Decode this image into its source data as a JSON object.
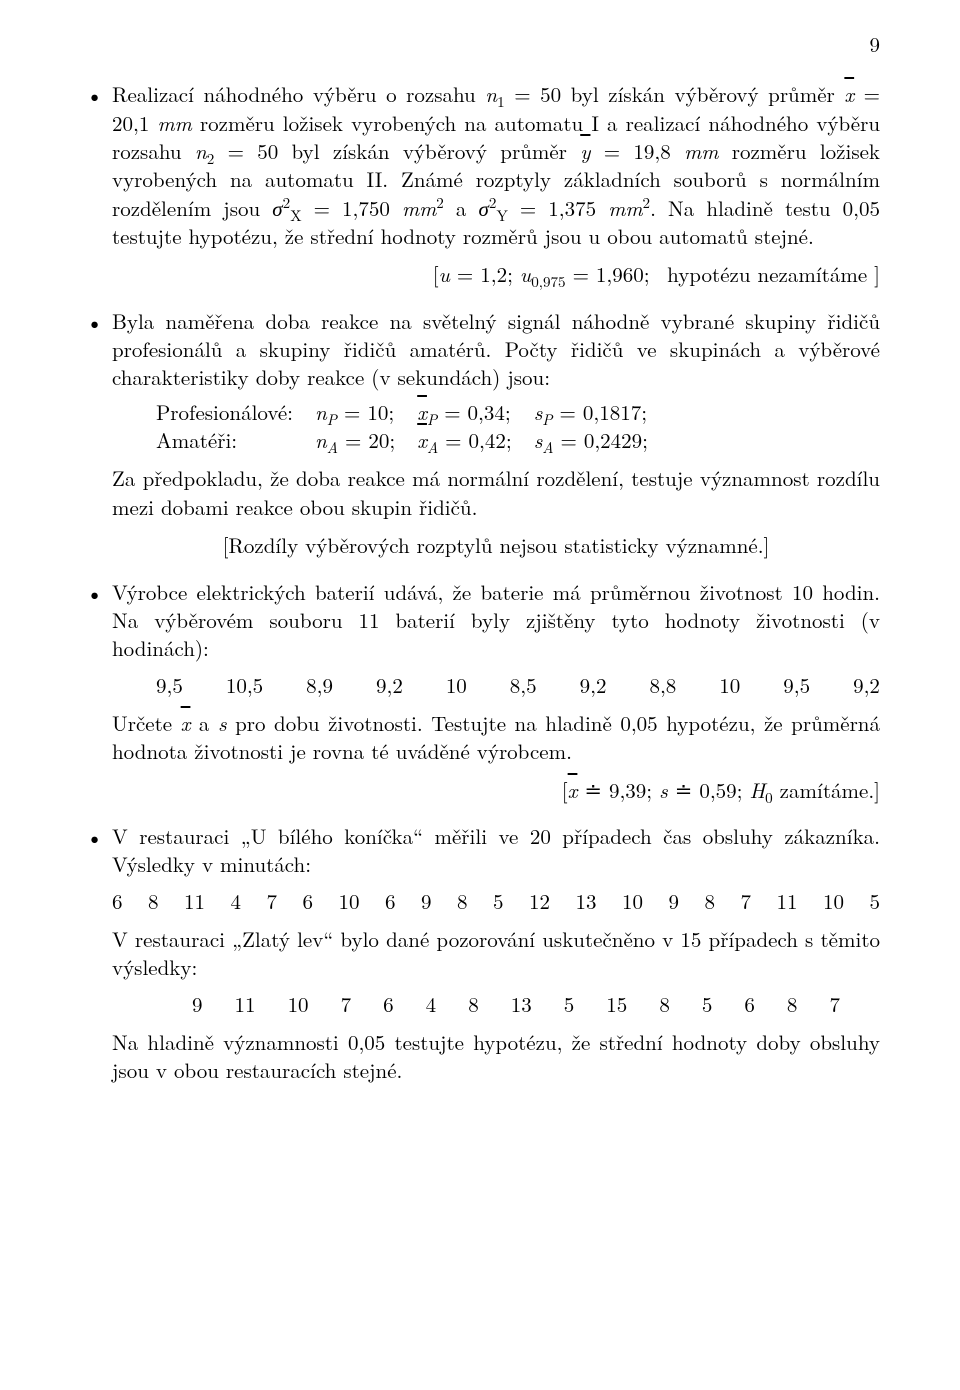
{
  "page": {
    "number": "9"
  },
  "colors": {
    "text": "#000000",
    "background": "#ffffff"
  },
  "typography": {
    "body_fontsize_pt": 16,
    "line_height": 1.35,
    "family": "Computer Modern / Times-like serif"
  },
  "item1": {
    "text_html": "Realizací náhodného výběru o rozsahu <span class=\"ital\">n</span><sub>1</sub> = 50 byl získán výběrový průměr <span class=\"ital bar\">x</span> = 20,1 <span class=\"ital\">mm</span> rozměru ložisek vyrobených na automatu I a realizací náhodného výběru rozsahu <span class=\"ital\">n</span><sub>2</sub> = 50 byl získán výběrový průměr <span class=\"ital bar\">y</span> = 19,8 <span class=\"ital\">mm</span> rozměru ložisek vyrobených na automatu II. Známé rozptyly základních souborů s normálním rozdělením jsou <span class=\"ital\">σ</span><sup>2</sup><sub>X</sub> = 1,750 <span class=\"ital\">mm</span><sup>2</sup> a <span class=\"ital\">σ</span><sup>2</sup><sub>Y</sub> = 1,375 <span class=\"ital\">mm</span><sup>2</sup>. Na hladině testu 0,05 testujte hypotézu, že střední hodnoty rozměrů jsou u obou automatů stejné.",
    "answer_html": "[<span class=\"ital\">u</span> = 1,2; <span class=\"ital\">u</span><sub>0,975</sub> = 1,960;&nbsp; hypotézu nezamítáme ]"
  },
  "item2": {
    "intro_html": "Byla naměřena doba reakce na světelný signál náhodně vybrané skupiny řidičů profesionálů a skupiny řidičů amatérů. Počty řidičů ve skupinách a výběrové charakteristiky doby reakce (v sekundách) jsou:",
    "table": {
      "rows": [
        [
          "Profesionálové:",
          "<span class=\"ital\">n<sub>P</sub></span> = 10;",
          "<span class=\"ital bar\">x</span><sub><span class=\"ital\">P</span></sub> = 0,34;",
          "<span class=\"ital\">s<sub>P</sub></span> = 0,1817;"
        ],
        [
          "Amatéři:",
          "<span class=\"ital\">n<sub>A</sub></span> = 20;",
          "<span class=\"ital bar\">x</span><sub><span class=\"ital\">A</span></sub> = 0,42;",
          "<span class=\"ital\">s<sub>A</sub></span> = 0,2429;"
        ]
      ]
    },
    "tail_html": "Za předpokladu, že doba reakce má normální rozdělení, testuje významnost rozdílu mezi dobami reakce obou skupin řidičů.",
    "answer_html": "[Rozdíly výběrových rozptylů nejsou statisticky významné.]"
  },
  "item3": {
    "intro_html": "Výrobce elektrických baterií udává, že baterie má průměrnou životnost 10 hodin. Na výběrovém souboru 11 baterií byly zjištěny tyto hodnoty životnosti (v hodinách):",
    "values": [
      "9,5",
      "10,5",
      "8,9",
      "9,2",
      "10",
      "8,5",
      "9,2",
      "8,8",
      "10",
      "9,5",
      "9,2"
    ],
    "tail_html": "Určete <span class=\"ital bar\">x</span> a <span class=\"ital\">s</span> pro dobu životnosti. Testujte na hladině 0,05 hypotézu, že průměrná hodnota životnosti je rovna té uváděné výrobcem.",
    "answer_html": "[<span class=\"ital bar\">x</span> ≐ 9,39; <span class=\"ital\">s</span> ≐ 0,59; <span class=\"ital\">H</span><sub>0</sub> zamítáme.]"
  },
  "item4": {
    "intro_html": "V restauraci „U bílého koníčka“ měřili ve 20 případech čas obsluhy zákazníka. Výsledky v minutách:",
    "values1": [
      "6",
      "8",
      "11",
      "4",
      "7",
      "6",
      "10",
      "6",
      "9",
      "8",
      "5",
      "12",
      "13",
      "10",
      "9",
      "8",
      "7",
      "11",
      "10",
      "5"
    ],
    "mid_html": "V restauraci „Zlatý lev“ bylo dané pozorování uskutečněno v 15 případech s těmito výsledky:",
    "values2": [
      "9",
      "11",
      "10",
      "7",
      "6",
      "4",
      "8",
      "13",
      "5",
      "15",
      "8",
      "5",
      "6",
      "8",
      "7"
    ],
    "tail_html": "Na hladině významnosti 0,05 testujte hypotézu, že střední hodnoty doby obsluhy jsou v obou restauracích stejné."
  }
}
